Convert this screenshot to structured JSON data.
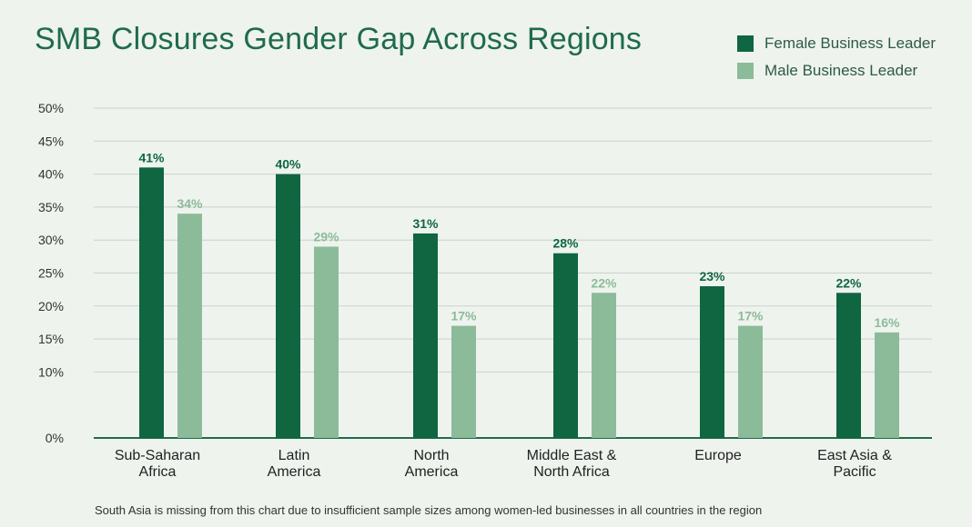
{
  "colors": {
    "background": "#eef3ee",
    "female": "#0f6641",
    "male": "#8cbb99",
    "title": "#1f6b4b",
    "grid": "#c9d3cc",
    "axis": "#1f6b4b"
  },
  "footnote": "South Asia is missing from this chart due to insufficient sample sizes among women-led businesses in all countries in the region",
  "chart_data": {
    "type": "bar",
    "title": "SMB Closures Gender Gap Across Regions",
    "categories": [
      [
        "Sub-Saharan",
        "Africa"
      ],
      [
        "Latin",
        "America"
      ],
      [
        "North",
        "America"
      ],
      [
        "Middle East &",
        "North Africa"
      ],
      [
        "Europe"
      ],
      [
        "East Asia &",
        "Pacific"
      ]
    ],
    "series": [
      {
        "name": "Female Business Leader",
        "values": [
          41,
          40,
          31,
          28,
          23,
          22
        ],
        "labels": [
          "41%",
          "40%",
          "31%",
          "28%",
          "23%",
          "22%"
        ]
      },
      {
        "name": "Male Business Leader",
        "values": [
          34,
          29,
          17,
          22,
          17,
          16
        ],
        "labels": [
          "34%",
          "29%",
          "17%",
          "22%",
          "17%",
          "16%"
        ]
      }
    ],
    "ylim": [
      0,
      50
    ],
    "yticks": [
      "0%",
      "10%",
      "15%",
      "20%",
      "25%",
      "30%",
      "35%",
      "40%",
      "45%",
      "50%"
    ],
    "ytick_values": [
      0,
      10,
      15,
      20,
      25,
      30,
      35,
      40,
      45,
      50
    ],
    "legend": "top-right",
    "grid": true,
    "xlabel": "",
    "ylabel": ""
  }
}
